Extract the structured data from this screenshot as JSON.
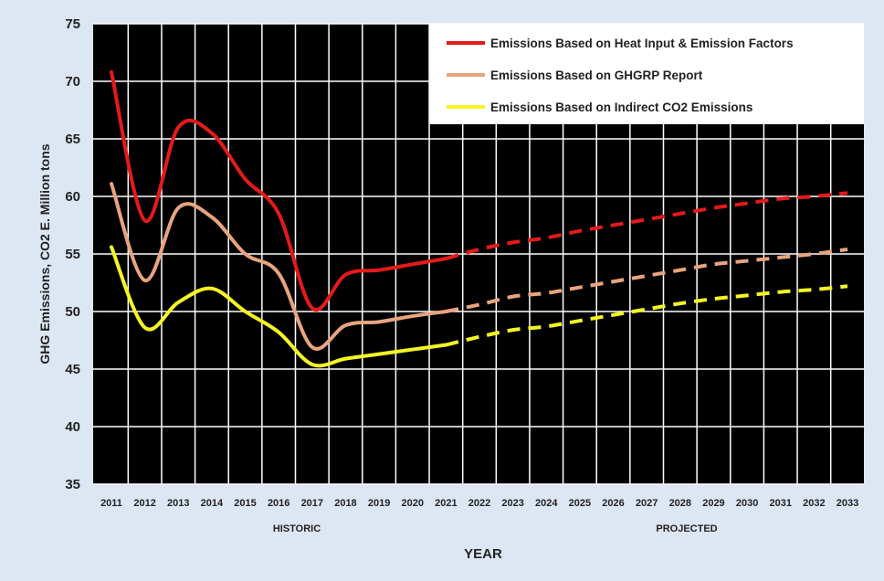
{
  "chart_data": {
    "type": "line",
    "xlabel": "YEAR",
    "ylabel": "GHG Emissions, CO2 E. Million tons",
    "section_labels": {
      "historic": "HISTORIC",
      "projected": "PROJECTED"
    },
    "ylim": [
      35,
      75
    ],
    "yticks": [
      35,
      40,
      45,
      50,
      55,
      60,
      65,
      70,
      75
    ],
    "x": [
      2011,
      2012,
      2013,
      2014,
      2015,
      2016,
      2017,
      2018,
      2019,
      2020,
      2021,
      2022,
      2023,
      2024,
      2025,
      2026,
      2027,
      2028,
      2029,
      2030,
      2031,
      2032,
      2033
    ],
    "historic_end": 2021,
    "grid": true,
    "legend_position": "top-right",
    "series": [
      {
        "name": "Emissions Based on Heat Input & Emission Factors",
        "color": "#e41a1a",
        "values": [
          70.8,
          57.9,
          66.0,
          65.5,
          61.5,
          58.5,
          50.3,
          53.2,
          53.6,
          54.1,
          54.6,
          55.4,
          56.0,
          56.4,
          57.0,
          57.5,
          58.0,
          58.5,
          59.0,
          59.4,
          59.8,
          60.0,
          60.3
        ]
      },
      {
        "name": "Emissions Based on GHGRP Report",
        "color": "#e8a47e",
        "values": [
          61.1,
          52.7,
          59.0,
          58.2,
          55.0,
          53.3,
          46.9,
          48.8,
          49.1,
          49.6,
          50.0,
          50.6,
          51.3,
          51.6,
          52.1,
          52.6,
          53.1,
          53.6,
          54.1,
          54.4,
          54.7,
          55.0,
          55.4
        ]
      },
      {
        "name": "Emissions Based on Indirect CO2 Emissions",
        "color": "#f5f525",
        "values": [
          55.6,
          48.6,
          50.8,
          52.0,
          50.0,
          48.2,
          45.4,
          45.9,
          46.3,
          46.7,
          47.1,
          47.8,
          48.4,
          48.7,
          49.2,
          49.7,
          50.2,
          50.7,
          51.1,
          51.4,
          51.7,
          51.9,
          52.2
        ]
      }
    ]
  }
}
